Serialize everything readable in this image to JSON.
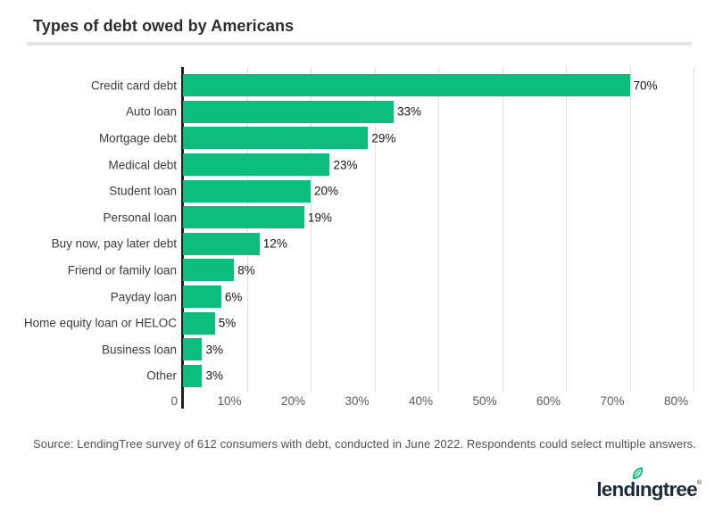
{
  "title": "Types of debt owed by Americans",
  "chart_data": {
    "type": "bar",
    "orientation": "horizontal",
    "title": "Types of debt owed by Americans",
    "categories": [
      "Credit card debt",
      "Auto loan",
      "Mortgage debt",
      "Medical debt",
      "Student loan",
      "Personal loan",
      "Buy now, pay later debt",
      "Friend or family loan",
      "Payday loan",
      "Home equity loan or HELOC",
      "Business loan",
      "Other"
    ],
    "values": [
      70,
      33,
      29,
      23,
      20,
      19,
      12,
      8,
      6,
      5,
      3,
      3
    ],
    "value_labels": [
      "70%",
      "33%",
      "29%",
      "23%",
      "20%",
      "19%",
      "12%",
      "8%",
      "6%",
      "5%",
      "3%",
      "3%"
    ],
    "xlabel": "",
    "ylabel": "",
    "xlim": [
      0,
      80
    ],
    "x_ticks": [
      "0",
      "10%",
      "20%",
      "30%",
      "40%",
      "50%",
      "60%",
      "70%",
      "80%"
    ],
    "grid": "vertical-on",
    "legend": "none",
    "bar_color": "#0dbd7d",
    "gridline_color": "#e0e0e0",
    "axis_line_color": "#1f1f1f"
  },
  "source_note": "Source: LendingTree survey of 612 consumers with debt, conducted in June 2022. Respondents could select multiple answers.",
  "logo": {
    "name": "lendingtree",
    "prefix": "lend",
    "dotless_i": "ı",
    "suffix": "ngtree",
    "trademark": "®",
    "text_color": "#1c2a39",
    "leaf_color": "#0dbd7d"
  },
  "colors": {
    "background": "#ffffff",
    "title_text": "#2d2d2d",
    "divider": "#e3e3e3",
    "category_label": "#3a3a3a",
    "value_label": "#141414",
    "tick_label": "#5a5a5a",
    "source_text": "#4f4f4f"
  }
}
